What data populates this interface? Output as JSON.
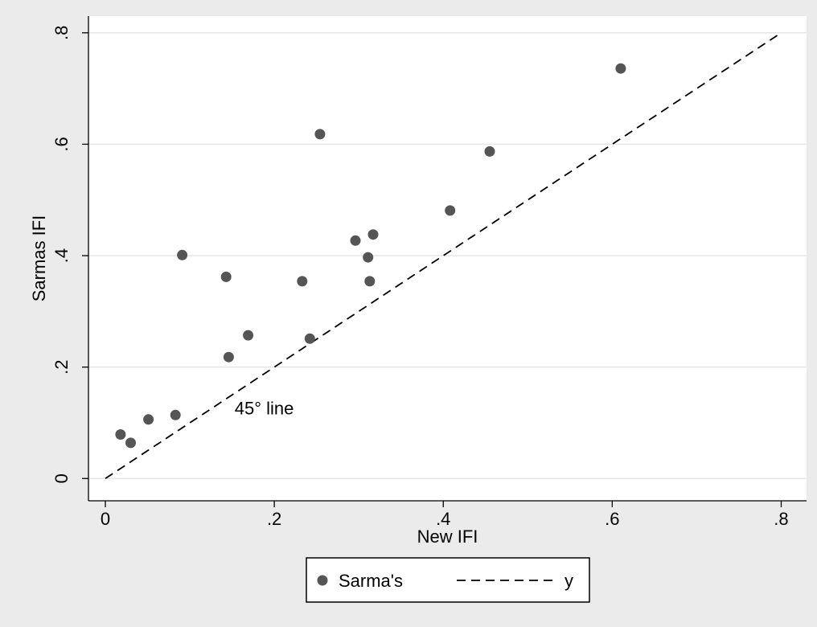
{
  "chart_data": {
    "type": "scatter",
    "xlabel": "New IFI",
    "ylabel": "Sarmas IFI",
    "xlim": [
      -0.02,
      0.83
    ],
    "ylim": [
      -0.04,
      0.83
    ],
    "xticks": [
      {
        "value": 0,
        "label": "0"
      },
      {
        "value": 0.2,
        "label": ".2"
      },
      {
        "value": 0.4,
        "label": ".4"
      },
      {
        "value": 0.6,
        "label": ".6"
      },
      {
        "value": 0.8,
        "label": ".8"
      }
    ],
    "yticks": [
      {
        "value": 0,
        "label": "0"
      },
      {
        "value": 0.2,
        "label": ".2"
      },
      {
        "value": 0.4,
        "label": ".4"
      },
      {
        "value": 0.6,
        "label": ".6"
      },
      {
        "value": 0.8,
        "label": ".8"
      }
    ],
    "grid": "horizontal",
    "series": [
      {
        "name": "Sarma's",
        "type": "scatter",
        "color": "#555555",
        "points": [
          {
            "x": 0.018,
            "y": 0.079
          },
          {
            "x": 0.03,
            "y": 0.064
          },
          {
            "x": 0.051,
            "y": 0.106
          },
          {
            "x": 0.083,
            "y": 0.114
          },
          {
            "x": 0.091,
            "y": 0.401
          },
          {
            "x": 0.143,
            "y": 0.362
          },
          {
            "x": 0.146,
            "y": 0.218
          },
          {
            "x": 0.169,
            "y": 0.257
          },
          {
            "x": 0.233,
            "y": 0.354
          },
          {
            "x": 0.242,
            "y": 0.251
          },
          {
            "x": 0.254,
            "y": 0.618
          },
          {
            "x": 0.296,
            "y": 0.427
          },
          {
            "x": 0.311,
            "y": 0.397
          },
          {
            "x": 0.313,
            "y": 0.354
          },
          {
            "x": 0.317,
            "y": 0.438
          },
          {
            "x": 0.408,
            "y": 0.481
          },
          {
            "x": 0.455,
            "y": 0.587
          },
          {
            "x": 0.61,
            "y": 0.736
          }
        ]
      },
      {
        "name": "y",
        "type": "line",
        "style": "dashed",
        "color": "#000000",
        "points": [
          {
            "x": 0,
            "y": 0
          },
          {
            "x": 0.8,
            "y": 0.8
          }
        ]
      }
    ],
    "annotations": [
      {
        "text": "45° line",
        "x": 0.153,
        "y": 0.115
      }
    ],
    "legend": {
      "position": "bottom",
      "entries": [
        {
          "label": "Sarma's",
          "marker": "circle"
        },
        {
          "label": "y",
          "marker": "dashed-line"
        }
      ]
    },
    "colors": {
      "outer_background": "#ebebeb",
      "plot_background": "#ffffff",
      "gridline": "#e6e6e6",
      "marker": "#555555",
      "line": "#000000"
    }
  }
}
